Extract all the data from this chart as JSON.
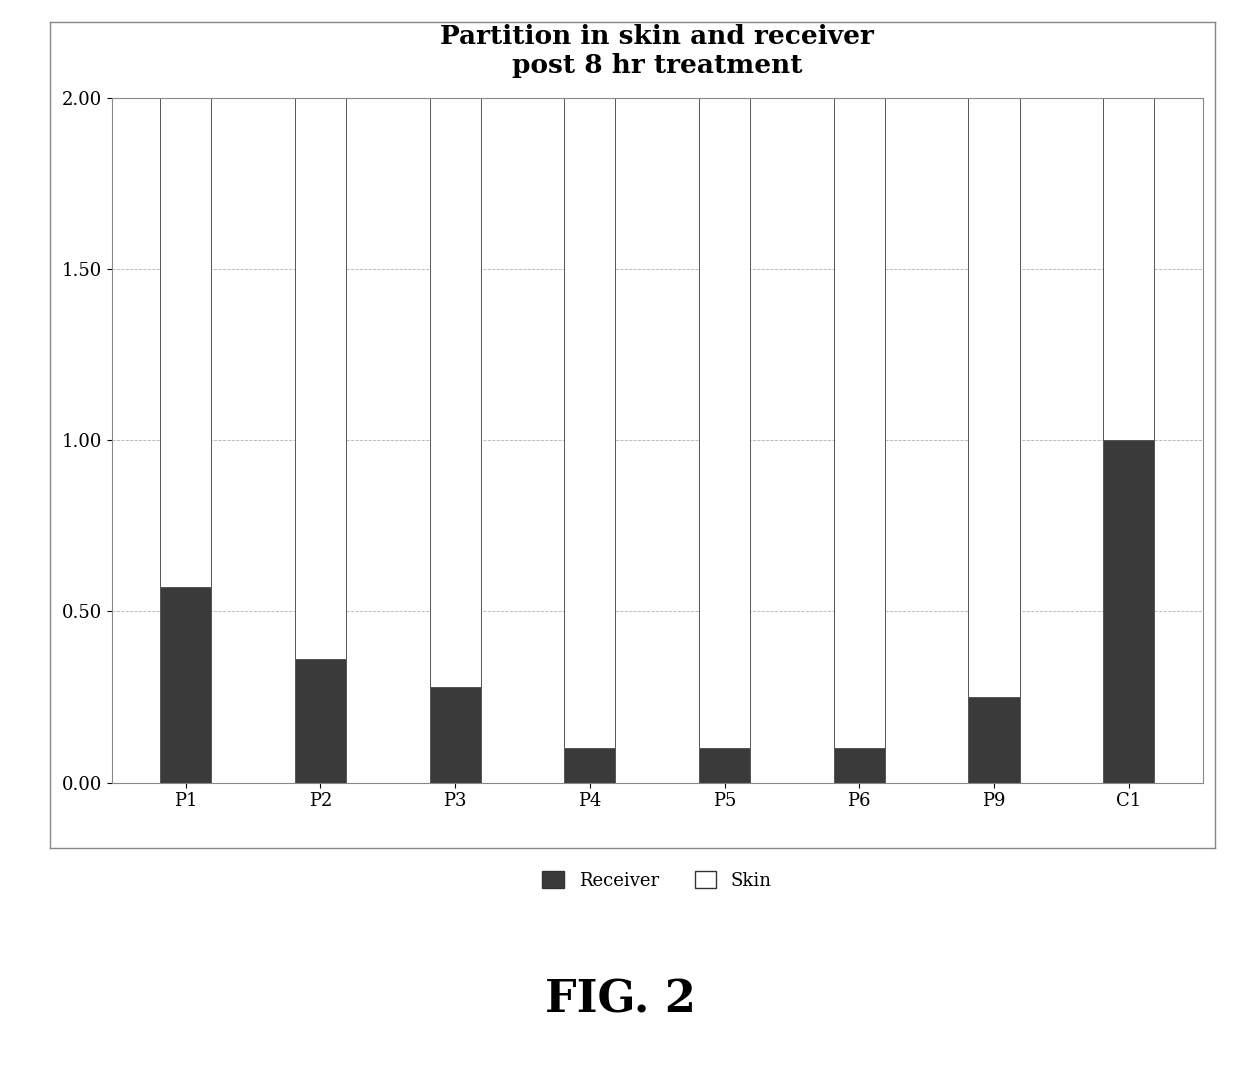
{
  "categories": [
    "P1",
    "P2",
    "P3",
    "P4",
    "P5",
    "P6",
    "P9",
    "C1"
  ],
  "receiver": [
    0.57,
    0.36,
    0.28,
    0.1,
    0.1,
    0.1,
    0.25,
    1.0
  ],
  "skin": [
    1.43,
    1.64,
    1.72,
    1.9,
    1.9,
    1.9,
    1.75,
    1.0
  ],
  "receiver_color": "#3a3a3a",
  "skin_color": "#ffffff",
  "bar_edge_color": "#555555",
  "title_line1": "Partition in skin and receiver",
  "title_line2": "post 8 hr treatment",
  "ylim": [
    0.0,
    2.0
  ],
  "yticks": [
    0.0,
    0.5,
    1.0,
    1.5,
    2.0
  ],
  "legend_receiver": "Receiver",
  "legend_skin": "Skin",
  "title_fontsize": 19,
  "tick_fontsize": 13,
  "legend_fontsize": 13,
  "bar_width": 0.38,
  "background_color": "#ffffff",
  "figure_bg": "#ffffff",
  "grid_color": "#aaaaaa",
  "fig_caption": "FIG. 2"
}
